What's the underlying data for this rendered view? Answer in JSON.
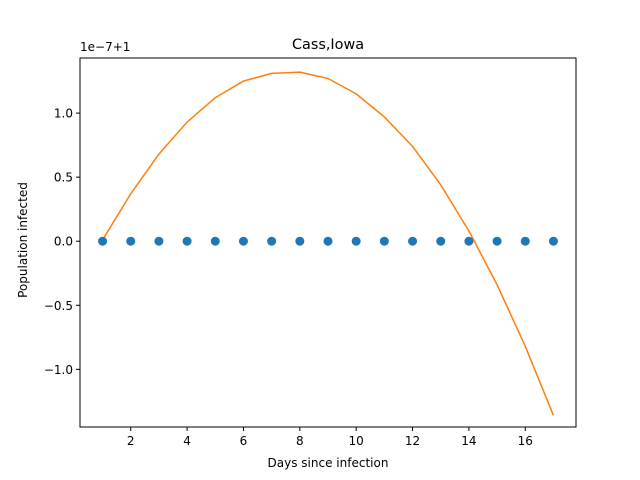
{
  "chart_data": {
    "type": "line",
    "title": "Cass,Iowa",
    "xlabel": "Days since infection",
    "ylabel": "Population infected",
    "offset_label": "1e−7+1",
    "xlim": [
      0.2,
      17.8
    ],
    "ylim": [
      -1.45,
      1.43
    ],
    "x_ticks": [
      2,
      4,
      6,
      8,
      10,
      12,
      14,
      16
    ],
    "y_ticks": [
      -1.0,
      -0.5,
      0.0,
      0.5,
      1.0
    ],
    "y_tick_labels": [
      "−1.0",
      "−0.5",
      "0.0",
      "0.5",
      "1.0"
    ],
    "grid": false,
    "legend": "none",
    "series": [
      {
        "kind": "scatter",
        "color": "#1f77b4",
        "x": [
          1,
          2,
          3,
          4,
          5,
          6,
          7,
          8,
          9,
          10,
          11,
          12,
          13,
          14,
          15,
          16,
          17
        ],
        "y": [
          0,
          0,
          0,
          0,
          0,
          0,
          0,
          0,
          0,
          0,
          0,
          0,
          0,
          0,
          0,
          0,
          0
        ]
      },
      {
        "kind": "line",
        "color": "#ff7f0e",
        "x": [
          1,
          2,
          3,
          4,
          5,
          6,
          7,
          8,
          9,
          10,
          11,
          12,
          13,
          14,
          15,
          16,
          17
        ],
        "y": [
          0.01,
          0.37,
          0.68,
          0.93,
          1.12,
          1.25,
          1.31,
          1.32,
          1.27,
          1.15,
          0.97,
          0.74,
          0.44,
          0.08,
          -0.34,
          -0.82,
          -1.36
        ]
      }
    ]
  }
}
